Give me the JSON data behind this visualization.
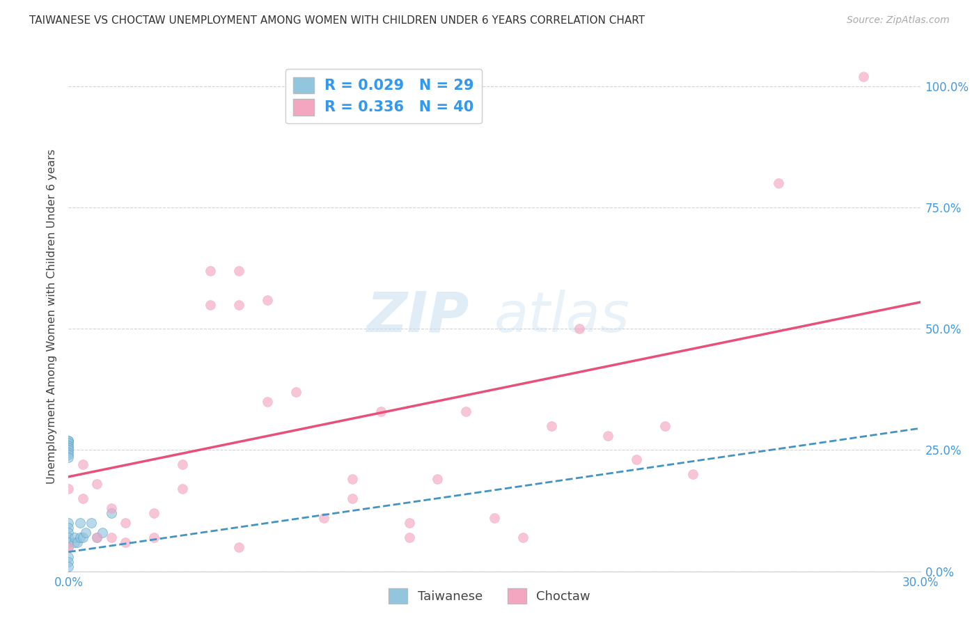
{
  "title": "TAIWANESE VS CHOCTAW UNEMPLOYMENT AMONG WOMEN WITH CHILDREN UNDER 6 YEARS CORRELATION CHART",
  "source": "Source: ZipAtlas.com",
  "ylabel": "Unemployment Among Women with Children Under 6 years",
  "x_label_taiwanese": "Taiwanese",
  "x_label_choctaw": "Choctaw",
  "x_min": 0.0,
  "x_max": 0.3,
  "y_min": 0.0,
  "y_max": 1.05,
  "x_ticks": [
    0.0,
    0.05,
    0.1,
    0.15,
    0.2,
    0.25,
    0.3
  ],
  "x_tick_labels": [
    "0.0%",
    "",
    "",
    "",
    "",
    "",
    "30.0%"
  ],
  "y_ticks": [
    0.0,
    0.25,
    0.5,
    0.75,
    1.0
  ],
  "y_tick_labels_right": [
    "0.0%",
    "25.0%",
    "50.0%",
    "75.0%",
    "100.0%"
  ],
  "r_taiwanese": 0.029,
  "n_taiwanese": 29,
  "r_choctaw": 0.336,
  "n_choctaw": 40,
  "color_taiwanese": "#92c5de",
  "color_choctaw": "#f4a6c0",
  "color_taiwanese_line": "#4393c3",
  "color_choctaw_line": "#e8507a",
  "background_color": "#ffffff",
  "watermark_zip": "ZIP",
  "watermark_atlas": "atlas",
  "taiwanese_x": [
    0.0,
    0.0,
    0.0,
    0.0,
    0.0,
    0.0,
    0.0,
    0.0,
    0.0,
    0.0,
    0.0,
    0.0,
    0.0,
    0.0,
    0.0,
    0.0,
    0.0,
    0.0,
    0.002,
    0.002,
    0.003,
    0.004,
    0.004,
    0.005,
    0.006,
    0.008,
    0.01,
    0.012,
    0.015
  ],
  "taiwanese_y": [
    0.27,
    0.27,
    0.265,
    0.26,
    0.255,
    0.25,
    0.245,
    0.24,
    0.235,
    0.1,
    0.09,
    0.08,
    0.07,
    0.06,
    0.05,
    0.03,
    0.02,
    0.01,
    0.06,
    0.07,
    0.06,
    0.07,
    0.1,
    0.07,
    0.08,
    0.1,
    0.07,
    0.08,
    0.12
  ],
  "choctaw_x": [
    0.0,
    0.0,
    0.005,
    0.005,
    0.01,
    0.01,
    0.015,
    0.015,
    0.02,
    0.02,
    0.03,
    0.03,
    0.04,
    0.04,
    0.05,
    0.05,
    0.06,
    0.06,
    0.06,
    0.07,
    0.07,
    0.08,
    0.09,
    0.1,
    0.1,
    0.11,
    0.12,
    0.12,
    0.13,
    0.14,
    0.15,
    0.16,
    0.17,
    0.18,
    0.19,
    0.2,
    0.21,
    0.22,
    0.25,
    0.28
  ],
  "choctaw_y": [
    0.05,
    0.17,
    0.15,
    0.22,
    0.07,
    0.18,
    0.07,
    0.13,
    0.06,
    0.1,
    0.07,
    0.12,
    0.17,
    0.22,
    0.55,
    0.62,
    0.05,
    0.55,
    0.62,
    0.56,
    0.35,
    0.37,
    0.11,
    0.15,
    0.19,
    0.33,
    0.07,
    0.1,
    0.19,
    0.33,
    0.11,
    0.07,
    0.3,
    0.5,
    0.28,
    0.23,
    0.3,
    0.2,
    0.8,
    1.02
  ],
  "choctaw_line_x0": 0.0,
  "choctaw_line_y0": 0.195,
  "choctaw_line_x1": 0.3,
  "choctaw_line_y1": 0.555,
  "taiwanese_line_x0": 0.0,
  "taiwanese_line_y0": 0.04,
  "taiwanese_line_x1": 0.3,
  "taiwanese_line_y1": 0.295
}
